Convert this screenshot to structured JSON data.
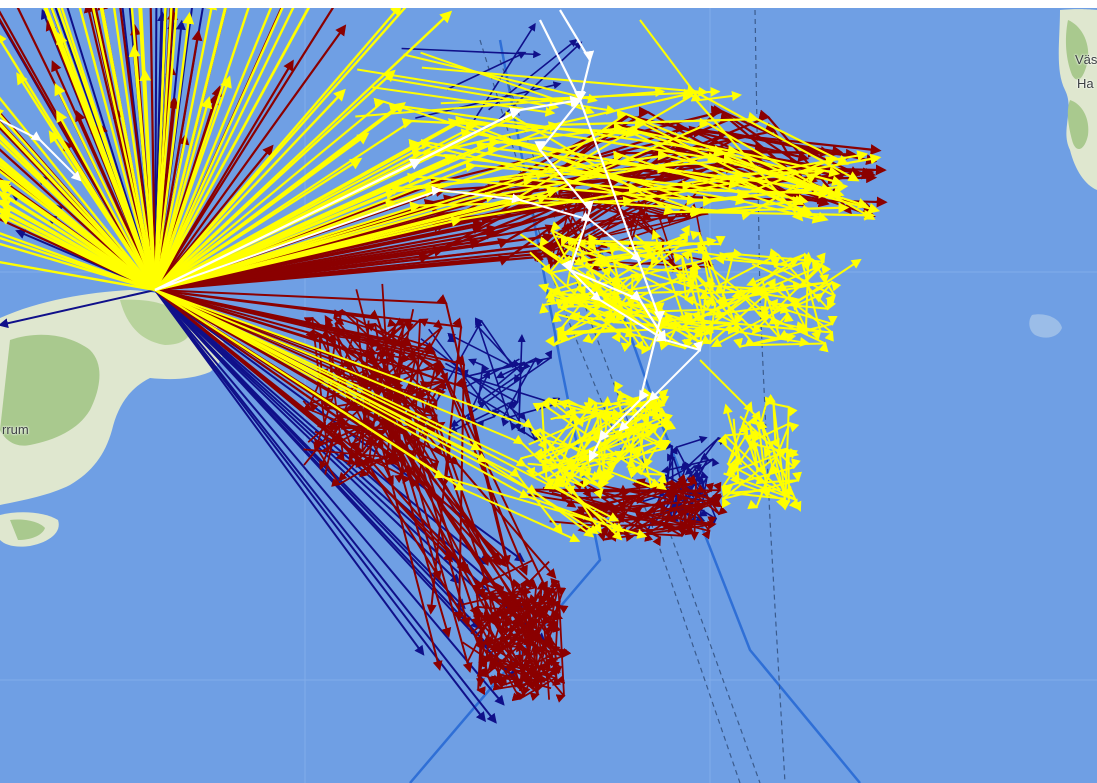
{
  "map": {
    "place_labels": [
      {
        "id": "label-arrum",
        "text": "rrum"
      },
      {
        "id": "label-vas",
        "text": "Väs"
      },
      {
        "id": "label-ha",
        "text": "Ha"
      }
    ],
    "colors": {
      "sea": "#6f9fe4",
      "land": "#dfe7cf",
      "forest": "#a9c98e",
      "boundary": "#2f6fd6",
      "yellow": "#ffff00",
      "red": "#8b0000",
      "navy": "#10108a",
      "white": "#ffffff"
    },
    "track_groups": [
      "yellow-tracks",
      "dark-red-tracks",
      "navy-tracks",
      "white-tracks"
    ]
  }
}
